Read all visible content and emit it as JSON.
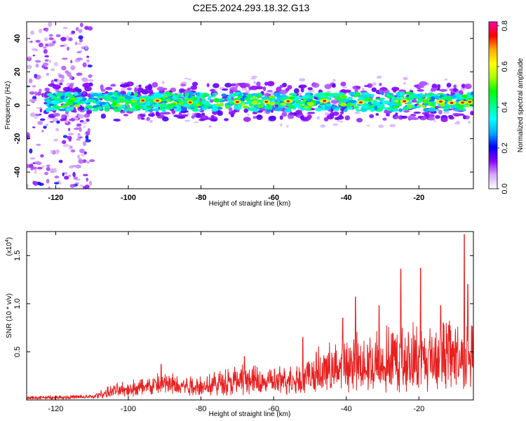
{
  "title": "C2E5.2024.293.18.32.G13",
  "chart_data": [
    {
      "type": "heatmap",
      "xlabel": "Height of straight line (km)",
      "ylabel": "Frequency (Hz)",
      "xlim": [
        -128,
        -5
      ],
      "ylim": [
        -50,
        50
      ],
      "x_ticks": [
        -120,
        -100,
        -80,
        -60,
        -40,
        -20
      ],
      "y_ticks": [
        -40,
        -20,
        0,
        20,
        40
      ],
      "colorbar": {
        "label": "Normalized spectral amplitude",
        "range": [
          0.0,
          0.82
        ],
        "ticks": [
          0.0,
          0.2,
          0.4,
          0.6,
          0.8
        ],
        "colormap": [
          "#ffffff",
          "#d4a8ff",
          "#8a00ff",
          "#0000ff",
          "#00aaff",
          "#00ffff",
          "#00ff88",
          "#00ff00",
          "#aaff00",
          "#ffff00",
          "#ffaa00",
          "#ff0000",
          "#ff00aa"
        ]
      },
      "band": {
        "center_hz": 2,
        "half_width_hz": 6
      },
      "grid": false
    },
    {
      "type": "line",
      "xlabel": "Height of straight line (km)",
      "ylabel": "SNR (10 * v/v)",
      "y_multiplier": "(x10",
      "y_multiplier_exp": "4",
      "y_multiplier_close": ")",
      "xlim": [
        -128,
        -5
      ],
      "ylim": [
        0,
        1.75
      ],
      "x_ticks": [
        -120,
        -100,
        -80,
        -60,
        -40,
        -20
      ],
      "y_ticks": [
        0.5,
        1.0,
        1.5
      ],
      "y_tick_labels": [
        "0.5",
        "1.0",
        "1.5"
      ],
      "color": "#e82020",
      "grid": false,
      "envelope": [
        {
          "x": -128,
          "base": 0.02,
          "amp": 0.02
        },
        {
          "x": -110,
          "base": 0.03,
          "amp": 0.03
        },
        {
          "x": -104,
          "base": 0.09,
          "amp": 0.08
        },
        {
          "x": -90,
          "base": 0.14,
          "amp": 0.17
        },
        {
          "x": -80,
          "base": 0.12,
          "amp": 0.16
        },
        {
          "x": -70,
          "base": 0.17,
          "amp": 0.2
        },
        {
          "x": -58,
          "base": 0.17,
          "amp": 0.18
        },
        {
          "x": -50,
          "base": 0.2,
          "amp": 0.28
        },
        {
          "x": -40,
          "base": 0.25,
          "amp": 0.45
        },
        {
          "x": -30,
          "base": 0.26,
          "amp": 0.52
        },
        {
          "x": -20,
          "base": 0.3,
          "amp": 0.55
        },
        {
          "x": -10,
          "base": 0.33,
          "amp": 0.6
        },
        {
          "x": -5,
          "base": 0.4,
          "amp": 0.55
        }
      ],
      "peaks": [
        {
          "x": -91,
          "y": 0.37
        },
        {
          "x": -68,
          "y": 0.45
        },
        {
          "x": -52,
          "y": 0.65
        },
        {
          "x": -41,
          "y": 0.85
        },
        {
          "x": -37.5,
          "y": 1.07
        },
        {
          "x": -31,
          "y": 0.98
        },
        {
          "x": -25,
          "y": 1.36
        },
        {
          "x": -19.5,
          "y": 1.37
        },
        {
          "x": -14,
          "y": 0.98
        },
        {
          "x": -7.5,
          "y": 1.72
        },
        {
          "x": -6.5,
          "y": 1.2
        }
      ]
    }
  ]
}
